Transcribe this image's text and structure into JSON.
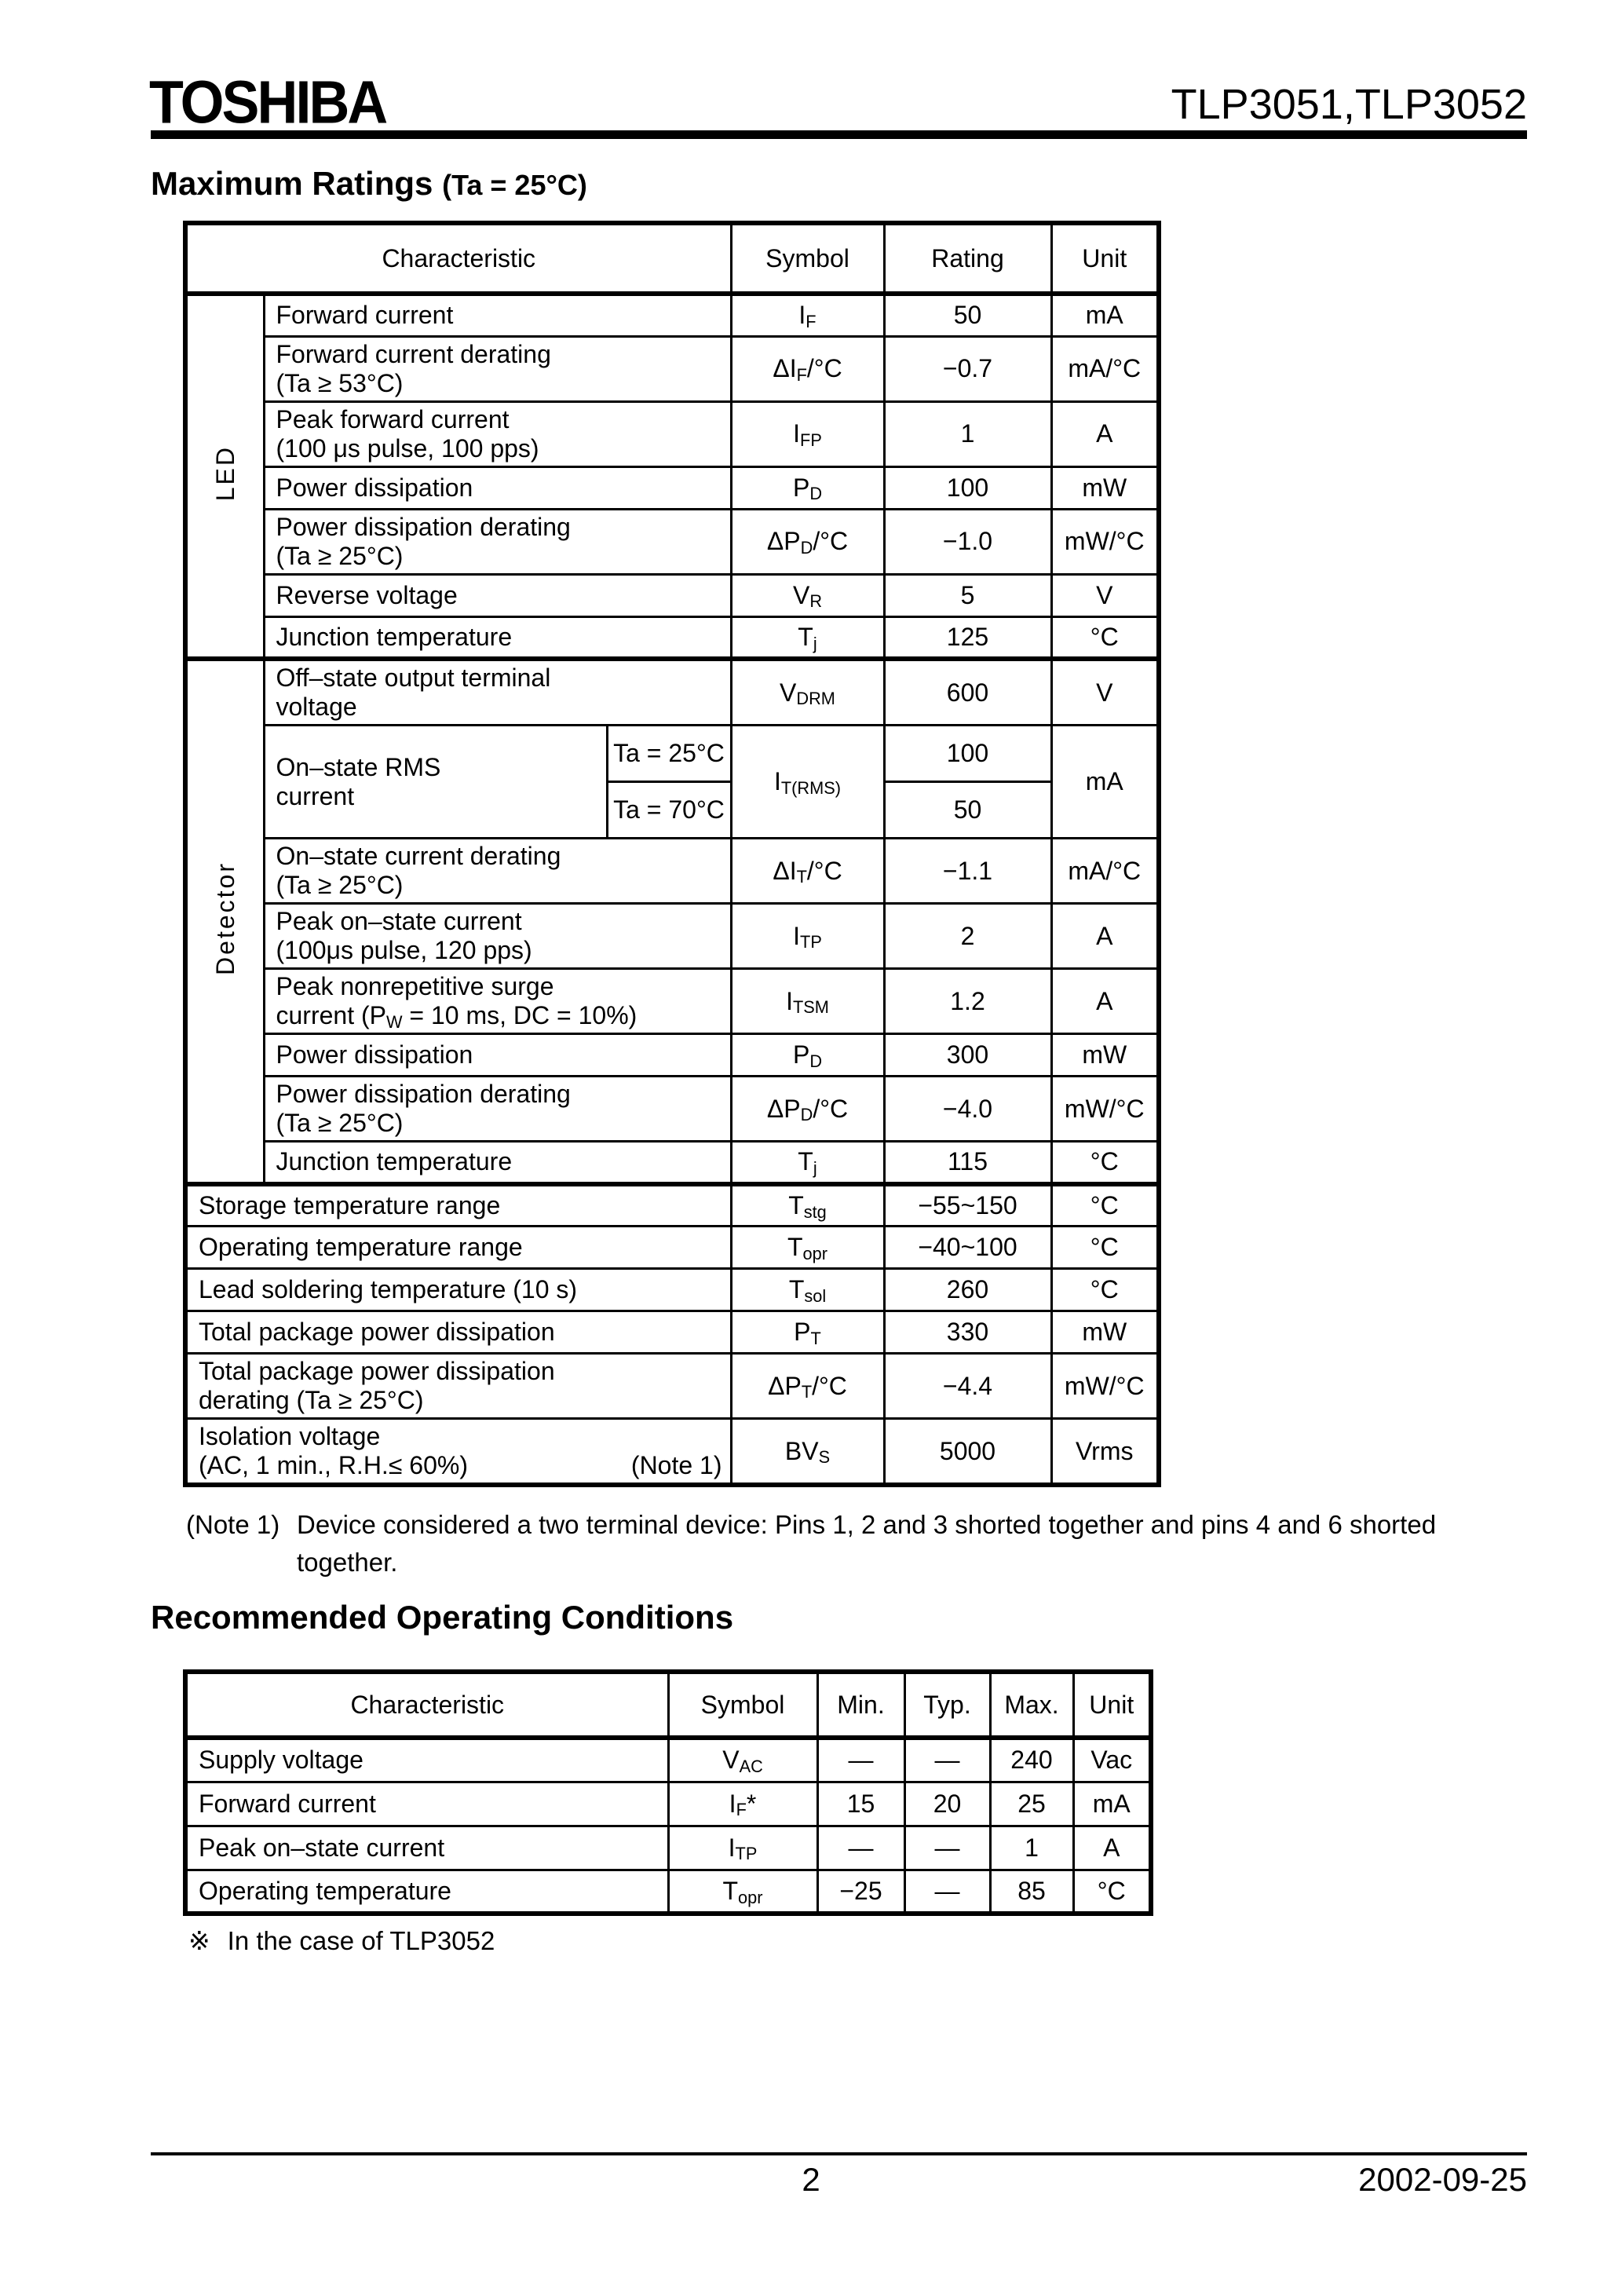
{
  "colors": {
    "text": "#000000",
    "background": "#ffffff",
    "rule": "#000000"
  },
  "header": {
    "logo": "TOSHIBA",
    "part_numbers": "TLP3051,TLP3052"
  },
  "max_ratings": {
    "title": "Maximum Ratings",
    "title_suffix": "(Ta = 25°C)",
    "columns": [
      "Characteristic",
      "Symbol",
      "Rating",
      "Unit"
    ],
    "sections": [
      {
        "group_label": "LED",
        "rows": [
          {
            "char": [
              "Forward current"
            ],
            "symbol": "I_{F}",
            "rating": "50",
            "unit": "mA"
          },
          {
            "char": [
              "Forward current derating",
              "(Ta ≥ 53°C)"
            ],
            "symbol": "ΔI_{F}/°C",
            "rating": "−0.7",
            "unit": "mA/°C"
          },
          {
            "char": [
              "Peak forward current",
              "(100 μs pulse, 100 pps)"
            ],
            "symbol": "I_{FP}",
            "rating": "1",
            "unit": "A"
          },
          {
            "char": [
              "Power dissipation"
            ],
            "symbol": "P_{D}",
            "rating": "100",
            "unit": "mW"
          },
          {
            "char": [
              "Power dissipation derating",
              "(Ta ≥ 25°C)"
            ],
            "symbol": "ΔP_{D}/°C",
            "rating": "−1.0",
            "unit": "mW/°C"
          },
          {
            "char": [
              "Reverse voltage"
            ],
            "symbol": "V_{R}",
            "rating": "5",
            "unit": "V"
          },
          {
            "char": [
              "Junction temperature"
            ],
            "symbol": "T_{j}",
            "rating": "125",
            "unit": "°C"
          }
        ]
      },
      {
        "group_label": "Detector",
        "rows": [
          {
            "char": [
              "Off–state output terminal",
              "voltage"
            ],
            "symbol": "V_{DRM}",
            "rating": "600",
            "unit": "V"
          },
          {
            "type": "split",
            "char": [
              "On–state RMS",
              "current"
            ],
            "conditions": [
              "Ta = 25°C",
              "Ta = 70°C"
            ],
            "symbol": "I_{T(RMS)}",
            "ratings": [
              "100",
              "50"
            ],
            "unit": "mA"
          },
          {
            "char": [
              "On–state current derating",
              "(Ta ≥ 25°C)"
            ],
            "symbol": "ΔI_{T}/°C",
            "rating": "−1.1",
            "unit": "mA/°C"
          },
          {
            "char": [
              "Peak on–state current",
              "(100μs pulse, 120 pps)"
            ],
            "symbol": "I_{TP}",
            "rating": "2",
            "unit": "A"
          },
          {
            "char": [
              "Peak nonrepetitive surge",
              "current (P_{W} = 10 ms, DC = 10%)"
            ],
            "symbol": "I_{TSM}",
            "rating": "1.2",
            "unit": "A"
          },
          {
            "char": [
              "Power dissipation"
            ],
            "symbol": "P_{D}",
            "rating": "300",
            "unit": "mW"
          },
          {
            "char": [
              "Power dissipation derating",
              "(Ta ≥ 25°C)"
            ],
            "symbol": "ΔP_{D}/°C",
            "rating": "−4.0",
            "unit": "mW/°C"
          },
          {
            "char": [
              "Junction temperature"
            ],
            "symbol": "T_{j}",
            "rating": "115",
            "unit": "°C"
          }
        ]
      }
    ],
    "common_rows": [
      {
        "char": [
          "Storage temperature range"
        ],
        "symbol": "T_{stg}",
        "rating": "−55~150",
        "unit": "°C"
      },
      {
        "char": [
          "Operating temperature range"
        ],
        "symbol": "T_{opr}",
        "rating": "−40~100",
        "unit": "°C"
      },
      {
        "char": [
          "Lead soldering temperature (10 s)"
        ],
        "symbol": "T_{sol}",
        "rating": "260",
        "unit": "°C"
      },
      {
        "char": [
          "Total package power dissipation"
        ],
        "symbol": "P_{T}",
        "rating": "330",
        "unit": "mW"
      },
      {
        "char": [
          "Total package power dissipation",
          "derating (Ta ≥ 25°C)"
        ],
        "symbol": "ΔP_{T}/°C",
        "rating": "−4.4",
        "unit": "mW/°C"
      },
      {
        "char": [
          "Isolation voltage",
          "(AC, 1 min., R.H.≤ 60%)"
        ],
        "note_right": "(Note 1)",
        "symbol": "BV_{S}",
        "rating": "5000",
        "unit": "Vrms"
      }
    ]
  },
  "note": {
    "label": "(Note 1)",
    "line1": "Device considered a two terminal device: Pins 1, 2 and 3 shorted together and pins 4 and 6 shorted",
    "line2": "together."
  },
  "rec_conditions": {
    "title": "Recommended Operating Conditions",
    "columns": [
      "Characteristic",
      "Symbol",
      "Min.",
      "Typ.",
      "Max.",
      "Unit"
    ],
    "rows": [
      {
        "char": "Supply voltage",
        "symbol": "V_{AC}",
        "min": "—",
        "typ": "—",
        "max": "240",
        "unit": "Vac"
      },
      {
        "char": "Forward current",
        "symbol": "I_{F}*",
        "min": "15",
        "typ": "20",
        "max": "25",
        "unit": "mA"
      },
      {
        "char": "Peak on–state current",
        "symbol": "I_{TP}",
        "min": "—",
        "typ": "—",
        "max": "1",
        "unit": "A"
      },
      {
        "char": "Operating temperature",
        "symbol": "T_{opr}",
        "min": "−25",
        "typ": "—",
        "max": "85",
        "unit": "°C"
      }
    ]
  },
  "footnote": {
    "mark": "※",
    "text": "In the case of TLP3052"
  },
  "footer": {
    "page": "2",
    "date": "2002-09-25"
  }
}
